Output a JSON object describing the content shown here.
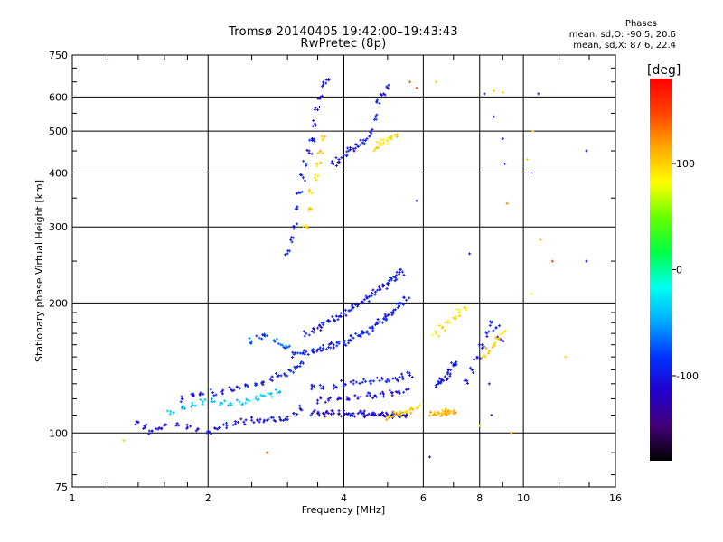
{
  "colors": {
    "background": "#ffffff",
    "axis": "#000000",
    "grid": "#000000"
  },
  "header": {
    "title_line1": "Tromsø 20140405 19:42:00–19:43:43",
    "title_line2": "RwPretec (8p)",
    "stats_heading": "Phases",
    "stats_line1": "mean, sd,O: -90.5, 20.6",
    "stats_line2": "mean, sd,X: 87.6, 22.4"
  },
  "chart_data": {
    "type": "scatter",
    "title": "Tromsø 20140405 19:42:00–19:43:43",
    "subtitle": "RwPretec (8p)",
    "xlabel": "Frequency [MHz]",
    "ylabel": "Stationary phase Virtual Height [km]",
    "x_scale": "log2",
    "y_scale": "log",
    "xlim": [
      1,
      16
    ],
    "ylim": [
      75,
      750
    ],
    "x_ticks": [
      1,
      2,
      4,
      6,
      8,
      10,
      16
    ],
    "x_minor_ticks": [
      1.2,
      1.4,
      1.6,
      1.8,
      2.5,
      3,
      3.5,
      5,
      7,
      9,
      12,
      14
    ],
    "y_ticks": [
      75,
      100,
      200,
      300,
      400,
      500,
      600,
      750
    ],
    "y_minor_ticks": [
      80,
      90,
      110,
      120,
      130,
      140,
      150,
      160,
      170,
      180,
      190,
      250,
      350,
      450,
      550,
      650,
      700
    ],
    "grid": true,
    "colorbar": {
      "label": "[deg]",
      "min": -180,
      "max": 180,
      "ticks": [
        100,
        0,
        -100
      ],
      "colors": [
        "#000000",
        "#440077",
        "#2200cc",
        "#0033ff",
        "#00aaff",
        "#00ffee",
        "#00ff44",
        "#66ff00",
        "#ffff00",
        "#ffaa00",
        "#ff4400",
        "#ff0000"
      ]
    },
    "phase_stats": {
      "heading": "Phases",
      "O": {
        "mean": -90.5,
        "sd": 20.6
      },
      "X": {
        "mean": 87.6,
        "sd": 22.4
      }
    },
    "traces": [
      {
        "x": [
          1.4,
          1.45,
          1.5,
          1.55,
          1.6,
          1.7,
          1.8,
          1.9,
          2.0,
          2.1,
          2.2,
          2.3,
          2.4,
          2.5,
          2.6,
          2.7,
          2.8,
          2.9,
          3.0,
          3.1,
          3.2
        ],
        "y": [
          106,
          103,
          101,
          102,
          104,
          104,
          103,
          102,
          101,
          102,
          104,
          105,
          106,
          107,
          106,
          107,
          107,
          107,
          109,
          111,
          114
        ],
        "phase": -105
      },
      {
        "x": [
          1.65,
          1.75,
          1.85,
          1.95,
          2.05,
          2.15,
          2.25,
          2.35,
          2.45,
          2.55,
          2.65,
          2.75,
          2.85
        ],
        "y": [
          112,
          114,
          116,
          118,
          118,
          117,
          116,
          118,
          119,
          120,
          122,
          123,
          124
        ],
        "phase": -35
      },
      {
        "x": [
          1.75,
          1.85,
          1.95,
          2.05,
          2.15,
          2.25,
          2.35,
          2.45,
          2.55,
          2.65,
          2.75,
          2.85,
          2.95,
          3.05,
          3.15,
          3.25
        ],
        "y": [
          120,
          122,
          123,
          124,
          125,
          126,
          127,
          128,
          129,
          131,
          133,
          135,
          137,
          139,
          142,
          145
        ],
        "phase": -95
      },
      {
        "x": [
          2.5,
          2.6,
          2.7,
          2.8,
          2.9,
          3.0
        ],
        "y": [
          163,
          166,
          168,
          164,
          160,
          158
        ],
        "phase": -70
      },
      {
        "x": [
          3.4,
          3.5,
          3.6,
          3.7,
          3.8,
          3.9,
          4.0,
          4.1,
          4.2,
          4.3,
          4.4,
          4.5,
          4.6,
          4.7,
          4.8,
          4.9,
          5.0,
          5.1,
          5.2,
          5.3,
          5.4,
          5.5
        ],
        "y": [
          111,
          111,
          111,
          111,
          111,
          111,
          111,
          111,
          111,
          111,
          111,
          110,
          110,
          110,
          110,
          110,
          110,
          110,
          110,
          110,
          110,
          110
        ],
        "phase": -110
      },
      {
        "x": [
          3.5,
          3.7,
          3.9,
          4.1,
          4.3,
          4.5,
          4.7,
          4.9,
          5.1,
          5.3,
          5.5
        ],
        "y": [
          119,
          119,
          120,
          120,
          121,
          122,
          122,
          123,
          124,
          125,
          126
        ],
        "phase": -105
      },
      {
        "x": [
          3.4,
          3.6,
          3.8,
          4.0,
          4.2,
          4.4,
          4.6,
          4.8,
          5.0,
          5.2,
          5.4,
          5.6
        ],
        "y": [
          128,
          128,
          129,
          130,
          130,
          131,
          132,
          132,
          133,
          134,
          135,
          136
        ],
        "phase": -100
      },
      {
        "x": [
          3.1,
          3.2,
          3.3,
          3.4,
          3.5,
          3.6,
          3.7,
          3.8,
          3.9,
          4.0,
          4.1,
          4.2,
          4.3,
          4.4,
          4.5,
          4.6,
          4.7,
          4.8,
          4.9,
          5.0,
          5.1,
          5.2,
          5.3,
          5.4,
          5.5
        ],
        "y": [
          152,
          153,
          154,
          155,
          156,
          157,
          158,
          160,
          161,
          162,
          164,
          166,
          168,
          170,
          172,
          175,
          178,
          181,
          184,
          187,
          190,
          193,
          196,
          199,
          203
        ],
        "phase": -95
      },
      {
        "x": [
          3.3,
          3.4,
          3.5,
          3.6,
          3.7,
          3.8,
          3.9,
          4.0,
          4.1,
          4.2,
          4.3,
          4.4,
          4.5,
          4.6,
          4.7,
          4.8,
          4.9,
          5.0,
          5.1,
          5.2,
          5.3,
          5.4
        ],
        "y": [
          170,
          172,
          175,
          178,
          181,
          183,
          186,
          189,
          192,
          195,
          198,
          201,
          205,
          208,
          212,
          215,
          219,
          222,
          226,
          229,
          233,
          236
        ],
        "phase": -100
      },
      {
        "x": [
          3.0,
          3.05,
          3.1,
          3.15,
          3.2,
          3.25,
          3.3,
          3.35,
          3.4
        ],
        "y": [
          260,
          280,
          300,
          330,
          360,
          390,
          420,
          450,
          480
        ],
        "phase": -95
      },
      {
        "x": [
          3.4,
          3.45,
          3.5,
          3.55,
          3.6,
          3.7
        ],
        "y": [
          480,
          520,
          560,
          600,
          640,
          660
        ],
        "phase": -110
      },
      {
        "x": [
          3.3,
          3.35,
          3.4,
          3.45,
          3.5,
          3.55,
          3.6
        ],
        "y": [
          300,
          330,
          360,
          390,
          420,
          450,
          480
        ],
        "phase": 95
      },
      {
        "x": [
          3.8,
          3.9,
          4.0,
          4.1,
          4.2,
          4.3,
          4.4,
          4.5,
          4.6,
          4.7,
          4.8,
          4.9,
          5.0
        ],
        "y": [
          420,
          430,
          440,
          450,
          455,
          460,
          470,
          480,
          500,
          540,
          580,
          610,
          630
        ],
        "phase": -100
      },
      {
        "x": [
          4.7,
          4.8,
          4.9,
          5.0,
          5.1,
          5.2
        ],
        "y": [
          455,
          465,
          470,
          475,
          480,
          490
        ],
        "phase": 95
      },
      {
        "x": [
          5.0,
          5.1,
          5.2,
          5.3,
          5.4,
          5.5,
          5.6,
          5.7,
          5.8
        ],
        "y": [
          108,
          109,
          110,
          110,
          111,
          112,
          113,
          113,
          114
        ],
        "phase": 100
      },
      {
        "x": [
          6.3,
          6.4,
          6.5,
          6.6,
          6.7,
          6.8,
          6.9,
          7.0
        ],
        "y": [
          110,
          110,
          111,
          111,
          111,
          112,
          112,
          112
        ],
        "phase": 110
      },
      {
        "x": [
          6.4,
          6.5,
          6.6,
          6.7,
          6.8,
          6.9,
          7.0,
          7.1
        ],
        "y": [
          129,
          131,
          133,
          135,
          137,
          140,
          143,
          146
        ],
        "phase": -100
      },
      {
        "x": [
          6.4,
          6.6,
          6.8,
          7.0,
          7.2,
          7.4
        ],
        "y": [
          170,
          175,
          180,
          185,
          190,
          195
        ],
        "phase": 95
      },
      {
        "x": [
          7.5,
          7.7,
          7.9,
          8.1,
          8.3,
          8.5,
          8.7,
          8.9
        ],
        "y": [
          132,
          140,
          150,
          160,
          170,
          180,
          175,
          165
        ],
        "phase": -100
      },
      {
        "x": [
          8.2,
          8.4,
          8.6,
          8.8,
          9.0
        ],
        "y": [
          150,
          155,
          160,
          165,
          170
        ],
        "phase": 100
      }
    ],
    "scattered_points": [
      {
        "x": 8.2,
        "y": 610,
        "phase": -95
      },
      {
        "x": 8.6,
        "y": 620,
        "phase": 100
      },
      {
        "x": 9.0,
        "y": 615,
        "phase": 95
      },
      {
        "x": 8.6,
        "y": 540,
        "phase": -100
      },
      {
        "x": 9.0,
        "y": 480,
        "phase": -100
      },
      {
        "x": 9.1,
        "y": 420,
        "phase": -100
      },
      {
        "x": 10.5,
        "y": 500,
        "phase": 100
      },
      {
        "x": 10.8,
        "y": 610,
        "phase": -100
      },
      {
        "x": 10.2,
        "y": 430,
        "phase": 100
      },
      {
        "x": 10.4,
        "y": 400,
        "phase": -100
      },
      {
        "x": 13.8,
        "y": 450,
        "phase": -100
      },
      {
        "x": 11.6,
        "y": 250,
        "phase": 160
      },
      {
        "x": 13.8,
        "y": 250,
        "phase": -100
      },
      {
        "x": 9.2,
        "y": 340,
        "phase": 130
      },
      {
        "x": 7.6,
        "y": 260,
        "phase": -100
      },
      {
        "x": 6.4,
        "y": 650,
        "phase": 100
      },
      {
        "x": 5.6,
        "y": 650,
        "phase": 140
      },
      {
        "x": 5.8,
        "y": 630,
        "phase": 150
      },
      {
        "x": 5.8,
        "y": 345,
        "phase": -100
      },
      {
        "x": 6.2,
        "y": 88,
        "phase": -100
      },
      {
        "x": 2.7,
        "y": 90,
        "phase": 140
      },
      {
        "x": 9.4,
        "y": 100,
        "phase": 110
      },
      {
        "x": 10.4,
        "y": 210,
        "phase": 90
      },
      {
        "x": 10.9,
        "y": 280,
        "phase": 110
      },
      {
        "x": 8.4,
        "y": 130,
        "phase": -100
      },
      {
        "x": 8.5,
        "y": 110,
        "phase": -100
      },
      {
        "x": 8.0,
        "y": 104,
        "phase": 95
      },
      {
        "x": 12.4,
        "y": 150,
        "phase": 100
      },
      {
        "x": 1.3,
        "y": 96,
        "phase": 60
      }
    ]
  }
}
